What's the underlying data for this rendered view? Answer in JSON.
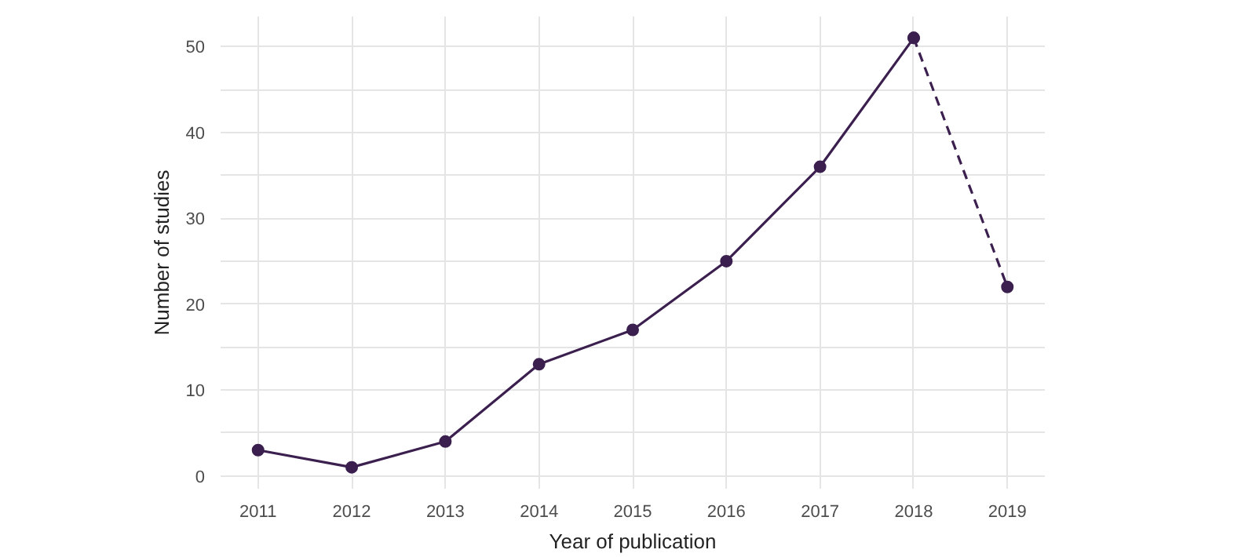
{
  "chart_data": {
    "type": "line",
    "xlabel": "Year of publication",
    "ylabel": "Number of studies",
    "xlim": [
      2010.6,
      2019.4
    ],
    "xticks": [
      2011,
      2012,
      2013,
      2014,
      2015,
      2016,
      2017,
      2018,
      2019
    ],
    "ylim": [
      -1.5,
      53.5
    ],
    "yticks": [
      0,
      {
        "value": 5,
        "label": null
      },
      10,
      {
        "value": 15,
        "label": null
      },
      20,
      {
        "value": 25,
        "label": null
      },
      30,
      {
        "value": 35,
        "label": null
      },
      40,
      {
        "value": 45,
        "label": null
      },
      50
    ],
    "grid": true,
    "marker": "circle",
    "series": [
      {
        "color": "#3b1f4e",
        "line_style": "solid",
        "x": [
          2011,
          2012,
          2013,
          2014,
          2015,
          2016,
          2017,
          2018
        ],
        "values": [
          3,
          1,
          4,
          13,
          17,
          25,
          36,
          51
        ]
      },
      {
        "color": "#3b1f4e",
        "line_style": "dashed",
        "x": [
          2018,
          2019
        ],
        "values": [
          51,
          22
        ]
      }
    ]
  }
}
